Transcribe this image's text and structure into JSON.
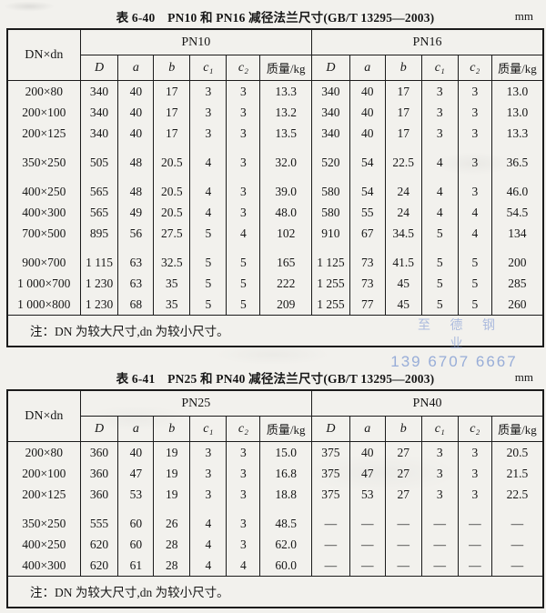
{
  "watermark": {
    "line1": "至 德 钢 业",
    "line2": "139 6707 6667",
    "color": "#7f9bd3"
  },
  "tables": [
    {
      "title": "表 6-40　PN10 和 PN16 减径法兰尺寸(GB/T 13295—2003)",
      "unit": "mm",
      "corner_header": "DN×dn",
      "group_headers": [
        "PN10",
        "PN16"
      ],
      "column_headers": [
        "D",
        "a",
        "b",
        "c₁",
        "c₂",
        "质量/kg"
      ],
      "note": "注：DN 为较大尺寸,dn 为较小尺寸。",
      "rows": [
        {
          "dn": "200×80",
          "gap_before": false,
          "left": [
            "340",
            "40",
            "17",
            "3",
            "3",
            "13.3"
          ],
          "right": [
            "340",
            "40",
            "17",
            "3",
            "3",
            "13.0"
          ]
        },
        {
          "dn": "200×100",
          "gap_before": false,
          "left": [
            "340",
            "40",
            "17",
            "3",
            "3",
            "13.2"
          ],
          "right": [
            "340",
            "40",
            "17",
            "3",
            "3",
            "13.0"
          ]
        },
        {
          "dn": "200×125",
          "gap_before": false,
          "left": [
            "340",
            "40",
            "17",
            "3",
            "3",
            "13.5"
          ],
          "right": [
            "340",
            "40",
            "17",
            "3",
            "3",
            "13.3"
          ]
        },
        {
          "dn": "350×250",
          "gap_before": true,
          "left": [
            "505",
            "48",
            "20.5",
            "4",
            "3",
            "32.0"
          ],
          "right": [
            "520",
            "54",
            "22.5",
            "4",
            "3",
            "36.5"
          ]
        },
        {
          "dn": "400×250",
          "gap_before": true,
          "left": [
            "565",
            "48",
            "20.5",
            "4",
            "3",
            "39.0"
          ],
          "right": [
            "580",
            "54",
            "24",
            "4",
            "3",
            "46.0"
          ]
        },
        {
          "dn": "400×300",
          "gap_before": false,
          "left": [
            "565",
            "49",
            "20.5",
            "4",
            "3",
            "48.0"
          ],
          "right": [
            "580",
            "55",
            "24",
            "4",
            "4",
            "54.5"
          ]
        },
        {
          "dn": "700×500",
          "gap_before": false,
          "left": [
            "895",
            "56",
            "27.5",
            "5",
            "4",
            "102"
          ],
          "right": [
            "910",
            "67",
            "34.5",
            "5",
            "4",
            "134"
          ]
        },
        {
          "dn": "900×700",
          "gap_before": true,
          "left": [
            "1 115",
            "63",
            "32.5",
            "5",
            "5",
            "165"
          ],
          "right": [
            "1 125",
            "73",
            "41.5",
            "5",
            "5",
            "200"
          ]
        },
        {
          "dn": "1 000×700",
          "gap_before": false,
          "left": [
            "1 230",
            "63",
            "35",
            "5",
            "5",
            "222"
          ],
          "right": [
            "1 255",
            "73",
            "45",
            "5",
            "5",
            "285"
          ]
        },
        {
          "dn": "1 000×800",
          "gap_before": false,
          "left": [
            "1 230",
            "68",
            "35",
            "5",
            "5",
            "209"
          ],
          "right": [
            "1 255",
            "77",
            "45",
            "5",
            "5",
            "260"
          ]
        }
      ]
    },
    {
      "title": "表 6-41　PN25 和 PN40 减径法兰尺寸(GB/T 13295—2003)",
      "unit": "mm",
      "corner_header": "DN×dn",
      "group_headers": [
        "PN25",
        "PN40"
      ],
      "column_headers": [
        "D",
        "a",
        "b",
        "c₁",
        "c₂",
        "质量/kg"
      ],
      "note": "注：DN 为较大尺寸,dn 为较小尺寸。",
      "rows": [
        {
          "dn": "200×80",
          "gap_before": false,
          "left": [
            "360",
            "40",
            "19",
            "3",
            "3",
            "15.0"
          ],
          "right": [
            "375",
            "40",
            "27",
            "3",
            "3",
            "20.5"
          ]
        },
        {
          "dn": "200×100",
          "gap_before": false,
          "left": [
            "360",
            "47",
            "19",
            "3",
            "3",
            "16.8"
          ],
          "right": [
            "375",
            "47",
            "27",
            "3",
            "3",
            "21.5"
          ]
        },
        {
          "dn": "200×125",
          "gap_before": false,
          "left": [
            "360",
            "53",
            "19",
            "3",
            "3",
            "18.8"
          ],
          "right": [
            "375",
            "53",
            "27",
            "3",
            "3",
            "22.5"
          ]
        },
        {
          "dn": "350×250",
          "gap_before": true,
          "left": [
            "555",
            "60",
            "26",
            "4",
            "3",
            "48.5"
          ],
          "right": [
            "—",
            "—",
            "—",
            "—",
            "—",
            "—"
          ]
        },
        {
          "dn": "400×250",
          "gap_before": false,
          "left": [
            "620",
            "60",
            "28",
            "4",
            "3",
            "62.0"
          ],
          "right": [
            "—",
            "—",
            "—",
            "—",
            "—",
            "—"
          ]
        },
        {
          "dn": "400×300",
          "gap_before": false,
          "left": [
            "620",
            "61",
            "28",
            "4",
            "4",
            "60.0"
          ],
          "right": [
            "—",
            "—",
            "—",
            "—",
            "—",
            "—"
          ]
        }
      ]
    }
  ]
}
